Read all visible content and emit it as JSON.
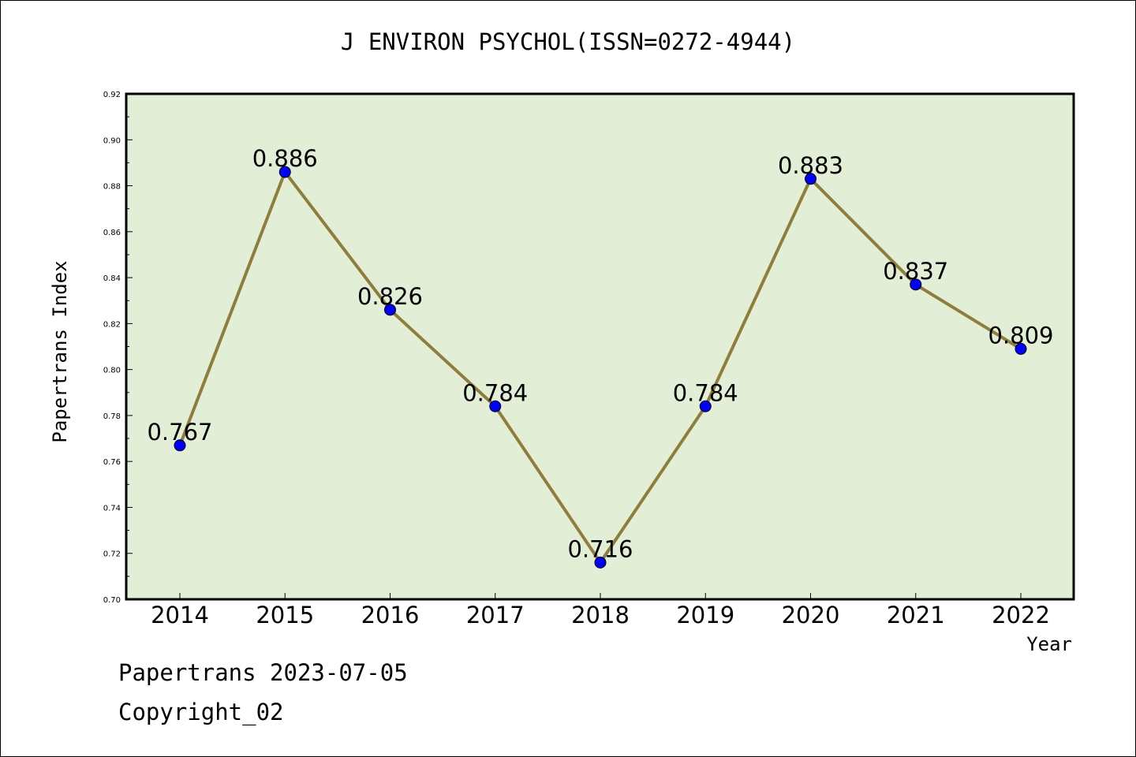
{
  "chart_data": {
    "type": "line",
    "title": "J ENVIRON PSYCHOL(ISSN=0272-4944)",
    "xlabel": "Year",
    "ylabel": "Papertrans Index",
    "categories": [
      "2014",
      "2015",
      "2016",
      "2017",
      "2018",
      "2019",
      "2020",
      "2021",
      "2022"
    ],
    "series": [
      {
        "values": [
          0.767,
          0.886,
          0.826,
          0.784,
          0.716,
          0.784,
          0.883,
          0.837,
          0.809
        ],
        "data_labels": [
          "0.767",
          "0.886",
          "0.826",
          "0.784",
          "0.716",
          "0.784",
          "0.883",
          "0.837",
          "0.809"
        ]
      }
    ],
    "ylim": [
      0.7,
      0.92
    ],
    "yticks": [
      "0.70",
      "0.72",
      "0.74",
      "0.76",
      "0.78",
      "0.80",
      "0.82",
      "0.84",
      "0.86",
      "0.88",
      "0.90",
      "0.92"
    ],
    "grid": false,
    "colors": {
      "plot_background": "#e2efd6",
      "line": "#8f7d3b",
      "marker": "#0000ff"
    }
  },
  "footer": {
    "date_line": "Papertrans 2023-07-05",
    "copyright": "Copyright_02"
  }
}
